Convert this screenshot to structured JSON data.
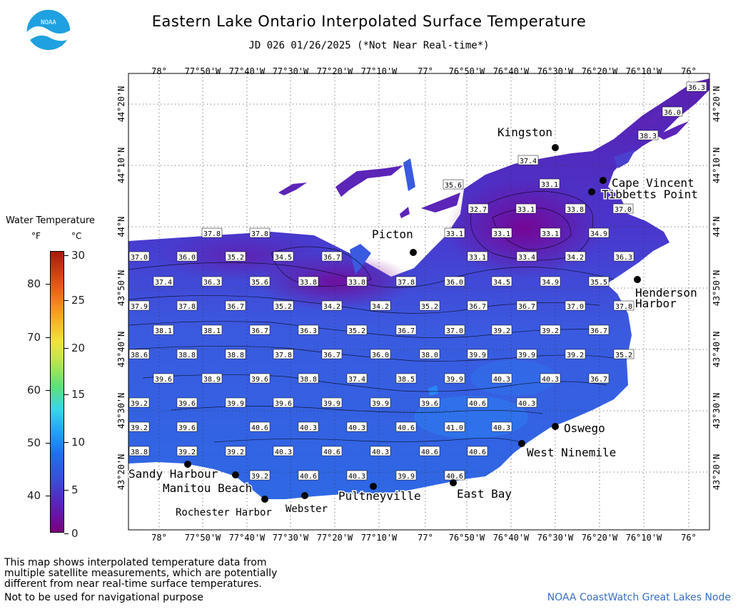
{
  "title": "Eastern Lake Ontario Interpolated Surface Temperature",
  "subtitle": "JD 026 01/26/2025 (*Not Near Real-time*)",
  "logo": {
    "text": "NOAA",
    "icon": "noaa-logo-icon"
  },
  "legend": {
    "title": "Water Temperature",
    "unit_f": "°F",
    "unit_c": "°C",
    "f_ticks": [
      "80",
      "70",
      "60",
      "50",
      "40"
    ],
    "c_ticks": [
      "30",
      "25",
      "20",
      "15",
      "10",
      "5",
      "0"
    ]
  },
  "map": {
    "lon_labels": [
      "78°",
      "77°50'W",
      "77°40'W",
      "77°30'W",
      "77°20'W",
      "77°10'W",
      "77°",
      "76°50'W",
      "76°40'W",
      "76°30'W",
      "76°20'W",
      "76°10'W",
      "76°"
    ],
    "lat_labels": [
      "44°20'N",
      "44°10'N",
      "44°N",
      "43°50'N",
      "43°40'N",
      "43°30'N",
      "43°20'N"
    ],
    "places": [
      {
        "name": "Kingston"
      },
      {
        "name": "Cape Vincent"
      },
      {
        "name": "Tibbetts Point"
      },
      {
        "name": "Picton"
      },
      {
        "name": "Henderson"
      },
      {
        "name": "Harbor"
      },
      {
        "name": "Oswego"
      },
      {
        "name": "West Ninemile"
      },
      {
        "name": "Sandy Harbour"
      },
      {
        "name": "Manitou Beach"
      },
      {
        "name": "Rochester Harbor"
      },
      {
        "name": "Webster"
      },
      {
        "name": "Pultneyville"
      },
      {
        "name": "East Bay"
      }
    ],
    "temperatures": [
      "36.3",
      "36.0",
      "38.3",
      "37.4",
      "33.1",
      "35.6",
      "32.7",
      "33.1",
      "33.8",
      "37.0",
      "37.8",
      "37.8",
      "33.1",
      "33.1",
      "33.1",
      "34.9",
      "37.0",
      "36.0",
      "35.2",
      "34.5",
      "36.7",
      "33.1",
      "33.4",
      "34.2",
      "36.3",
      "37.4",
      "36.3",
      "35.6",
      "33.8",
      "33.8",
      "37.8",
      "36.0",
      "34.5",
      "34.9",
      "35.5",
      "37.9",
      "37.8",
      "36.7",
      "35.2",
      "34.2",
      "34.2",
      "35.2",
      "36.7",
      "36.7",
      "37.0",
      "37.8",
      "38.1",
      "38.1",
      "36.7",
      "36.3",
      "35.2",
      "36.7",
      "37.0",
      "39.2",
      "39.2",
      "36.7",
      "38.6",
      "38.8",
      "38.8",
      "37.8",
      "36.7",
      "36.0",
      "38.0",
      "39.9",
      "39.9",
      "39.2",
      "35.2",
      "39.6",
      "38.9",
      "39.6",
      "38.8",
      "37.4",
      "38.5",
      "39.9",
      "40.3",
      "40.3",
      "36.7",
      "39.2",
      "39.6",
      "39.9",
      "39.6",
      "39.9",
      "39.9",
      "39.6",
      "40.6",
      "40.3",
      "39.2",
      "39.6",
      "40.6",
      "40.3",
      "40.3",
      "40.6",
      "41.0",
      "40.3",
      "38.8",
      "39.2",
      "39.2",
      "40.3",
      "40.6",
      "40.3",
      "40.6",
      "40.6",
      "39.2",
      "40.6",
      "40.3",
      "39.9",
      "40.6"
    ]
  },
  "footer": {
    "line1": "This map shows interpolated temperature data from",
    "line2": "multiple satellite measurements, which are potentially",
    "line3": "different from near real-time surface temperatures.",
    "line4": "Not to be used for navigational purpose"
  },
  "credit": "NOAA CoastWatch Great Lakes Node",
  "colors": {
    "accent": "#3a6fc0",
    "water_cold": "#6a1aa8",
    "water_warm": "#2f6fe8"
  }
}
